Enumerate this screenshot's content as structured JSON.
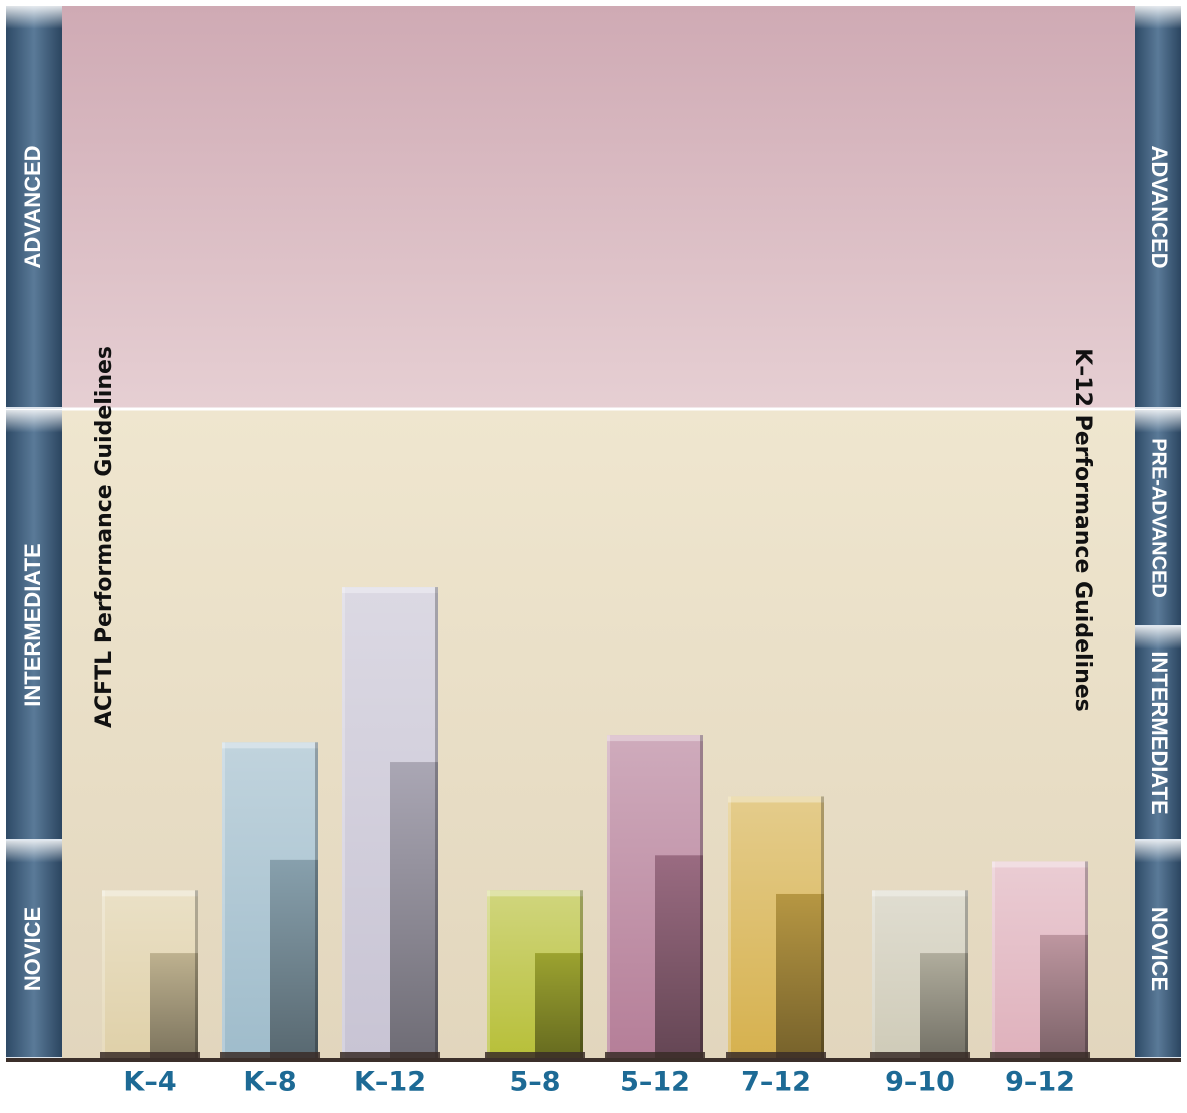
{
  "chart_data": {
    "type": "bar",
    "title_left": "ACFTL Performance Guidelines",
    "title_right": "K–12 Performance Guidelines",
    "left_bands": [
      "NOVICE",
      "INTERMEDIATE",
      "ADVANCED"
    ],
    "right_bands": [
      "NOVICE",
      "INTERMEDIATE",
      "PRE-ADVANCED",
      "ADVANCED"
    ],
    "categories": [
      "K–4",
      "K–8",
      "K–12",
      "5–8",
      "5–12",
      "7–12",
      "9–10",
      "9–12"
    ],
    "values": [
      0.47,
      0.88,
      1.31,
      0.47,
      0.9,
      0.73,
      0.47,
      0.55
    ],
    "value_scale": "ACTFL proficiency level (0 = bottom of Novice, 1 = Novice/Intermediate boundary, 2 = Intermediate/Advanced boundary)",
    "ylim": [
      0,
      2.8
    ],
    "colors": {
      "advanced_band": "#dcc2c8",
      "intermediate_band": "#ece1c8",
      "side_strip": "#3a5a78",
      "label": "#1d6a95",
      "bars": [
        "#dfd0a8",
        "#9fbccb",
        "#c8c4d4",
        "#b7bf38",
        "#b57e98",
        "#d6b14e",
        "#cfcbb8",
        "#dfb1bc"
      ]
    }
  }
}
